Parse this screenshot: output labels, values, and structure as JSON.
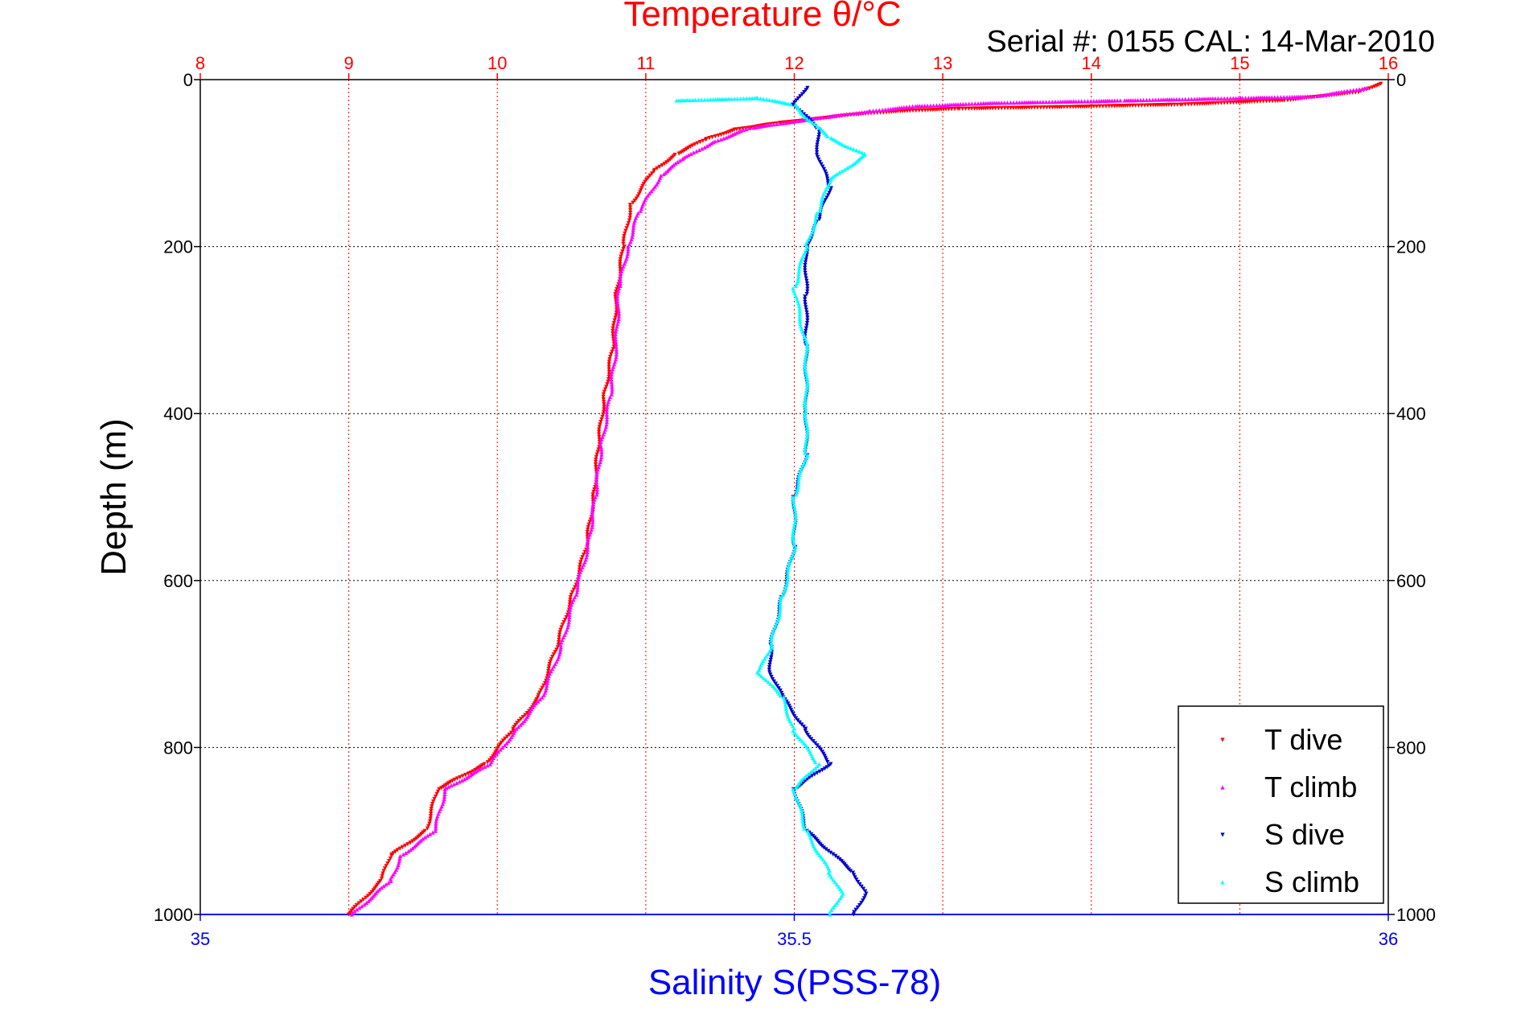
{
  "chart_data": {
    "type": "scatter",
    "title": "Temperature θ/°C",
    "subtitle": "Serial #: 0155  CAL: 14-Mar-2010",
    "xlabel": "Salinity S(PSS-78)",
    "ylabel": "Depth (m)",
    "x_top": {
      "range": [
        8,
        16
      ],
      "ticks": [
        "8",
        "9",
        "10",
        "11",
        "12",
        "13",
        "14",
        "15",
        "16"
      ],
      "color": "#ff0000"
    },
    "x_bottom": {
      "range": [
        35,
        36
      ],
      "ticks": [
        "35",
        "35.5",
        "36"
      ],
      "color": "#0000ff"
    },
    "y": {
      "range": [
        0,
        1000
      ],
      "reversed": true,
      "ticks": [
        "0",
        "200",
        "400",
        "600",
        "800",
        "1000"
      ]
    },
    "grid": true,
    "legend": {
      "placement": "bottom-right"
    },
    "series": [
      {
        "name": "T dive",
        "axis": "temperature",
        "color": "#ff0000",
        "marker": "triangle-down",
        "points": [
          [
            15.95,
            5
          ],
          [
            15.8,
            15
          ],
          [
            15.3,
            25
          ],
          [
            14.6,
            30
          ],
          [
            13.8,
            33
          ],
          [
            13.1,
            35
          ],
          [
            12.7,
            38
          ],
          [
            12.4,
            42
          ],
          [
            12.1,
            48
          ],
          [
            11.9,
            52
          ],
          [
            11.6,
            60
          ],
          [
            11.4,
            72
          ],
          [
            11.2,
            90
          ],
          [
            11.05,
            110
          ],
          [
            10.9,
            150
          ],
          [
            10.85,
            200
          ],
          [
            10.8,
            260
          ],
          [
            10.78,
            320
          ],
          [
            10.72,
            380
          ],
          [
            10.68,
            440
          ],
          [
            10.65,
            500
          ],
          [
            10.6,
            560
          ],
          [
            10.5,
            620
          ],
          [
            10.4,
            680
          ],
          [
            10.28,
            740
          ],
          [
            10.1,
            780
          ],
          [
            9.92,
            820
          ],
          [
            9.6,
            850
          ],
          [
            9.52,
            900
          ],
          [
            9.28,
            930
          ],
          [
            9.22,
            960
          ],
          [
            9.0,
            1000
          ]
        ]
      },
      {
        "name": "T climb",
        "axis": "temperature",
        "color": "#ff00ff",
        "marker": "triangle-up",
        "points": [
          [
            15.85,
            10
          ],
          [
            15.5,
            20
          ],
          [
            15.0,
            22
          ],
          [
            14.2,
            25
          ],
          [
            13.3,
            28
          ],
          [
            12.8,
            32
          ],
          [
            12.5,
            38
          ],
          [
            12.2,
            45
          ],
          [
            12.0,
            50
          ],
          [
            11.7,
            58
          ],
          [
            11.45,
            75
          ],
          [
            11.25,
            95
          ],
          [
            11.1,
            115
          ],
          [
            10.95,
            160
          ],
          [
            10.88,
            200
          ],
          [
            10.82,
            250
          ],
          [
            10.8,
            320
          ],
          [
            10.76,
            380
          ],
          [
            10.7,
            440
          ],
          [
            10.66,
            500
          ],
          [
            10.61,
            560
          ],
          [
            10.52,
            620
          ],
          [
            10.43,
            680
          ],
          [
            10.3,
            740
          ],
          [
            10.12,
            780
          ],
          [
            9.95,
            820
          ],
          [
            9.65,
            850
          ],
          [
            9.58,
            900
          ],
          [
            9.35,
            930
          ],
          [
            9.28,
            960
          ],
          [
            9.02,
            1000
          ]
        ]
      },
      {
        "name": "S dive",
        "axis": "salinity",
        "color": "#0000cc",
        "marker": "triangle-down",
        "points": [
          [
            35.51,
            10
          ],
          [
            35.5,
            30
          ],
          [
            35.52,
            60
          ],
          [
            35.52,
            90
          ],
          [
            35.53,
            130
          ],
          [
            35.52,
            170
          ],
          [
            35.51,
            200
          ],
          [
            35.51,
            260
          ],
          [
            35.51,
            320
          ],
          [
            35.51,
            400
          ],
          [
            35.51,
            450
          ],
          [
            35.5,
            500
          ],
          [
            35.5,
            560
          ],
          [
            35.49,
            620
          ],
          [
            35.48,
            680
          ],
          [
            35.48,
            710
          ],
          [
            35.49,
            740
          ],
          [
            35.51,
            780
          ],
          [
            35.53,
            820
          ],
          [
            35.5,
            850
          ],
          [
            35.51,
            900
          ],
          [
            35.55,
            950
          ],
          [
            35.56,
            975
          ],
          [
            35.55,
            1000
          ]
        ]
      },
      {
        "name": "S climb",
        "axis": "salinity",
        "color": "#00ffff",
        "marker": "triangle-up",
        "points": [
          [
            35.4,
            25
          ],
          [
            35.47,
            22
          ],
          [
            35.5,
            30
          ],
          [
            35.51,
            45
          ],
          [
            35.53,
            70
          ],
          [
            35.56,
            90
          ],
          [
            35.53,
            120
          ],
          [
            35.52,
            160
          ],
          [
            35.51,
            200
          ],
          [
            35.5,
            250
          ],
          [
            35.51,
            320
          ],
          [
            35.51,
            400
          ],
          [
            35.51,
            450
          ],
          [
            35.5,
            500
          ],
          [
            35.5,
            560
          ],
          [
            35.49,
            620
          ],
          [
            35.48,
            680
          ],
          [
            35.47,
            710
          ],
          [
            35.49,
            740
          ],
          [
            35.5,
            780
          ],
          [
            35.52,
            820
          ],
          [
            35.5,
            850
          ],
          [
            35.51,
            900
          ],
          [
            35.53,
            950
          ],
          [
            35.54,
            975
          ],
          [
            35.53,
            1000
          ]
        ]
      }
    ]
  }
}
